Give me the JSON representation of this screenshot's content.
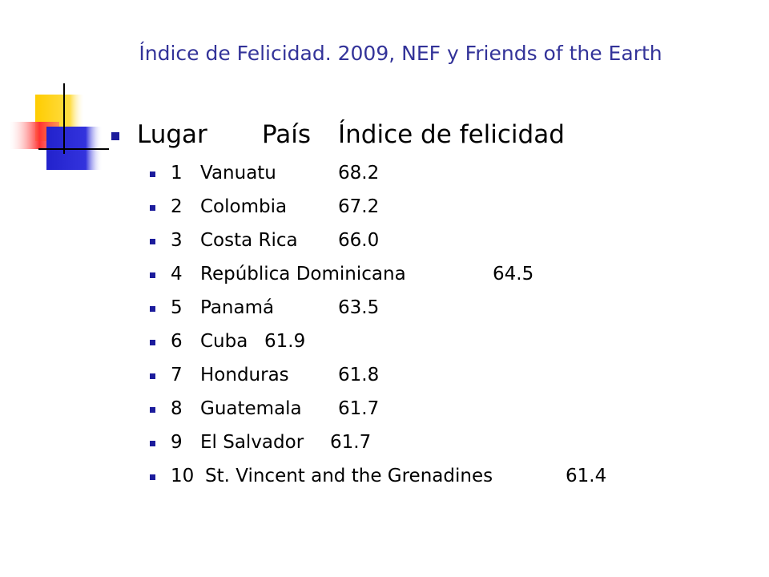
{
  "title": "Índice de Felicidad. 2009, NEF y Friends of the Earth",
  "header": [
    "Lugar",
    "País",
    "Índice de felicidad"
  ],
  "rows": [
    [
      "1",
      "Vanuatu",
      "68.2"
    ],
    [
      "2",
      "Colombia",
      "67.2"
    ],
    [
      "3",
      "Costa Rica",
      "66.0"
    ],
    [
      "4",
      "República Dominicana",
      "64.5"
    ],
    [
      "5",
      "Panamá",
      "63.5"
    ],
    [
      "6",
      "Cuba",
      "61.9"
    ],
    [
      "7",
      "Honduras",
      "61.8"
    ],
    [
      "8",
      "Guatemala",
      "61.7"
    ],
    [
      "9",
      "El Salvador",
      "61.7"
    ],
    [
      "10",
      "St. Vincent and the Grenadines",
      "61.4"
    ]
  ]
}
